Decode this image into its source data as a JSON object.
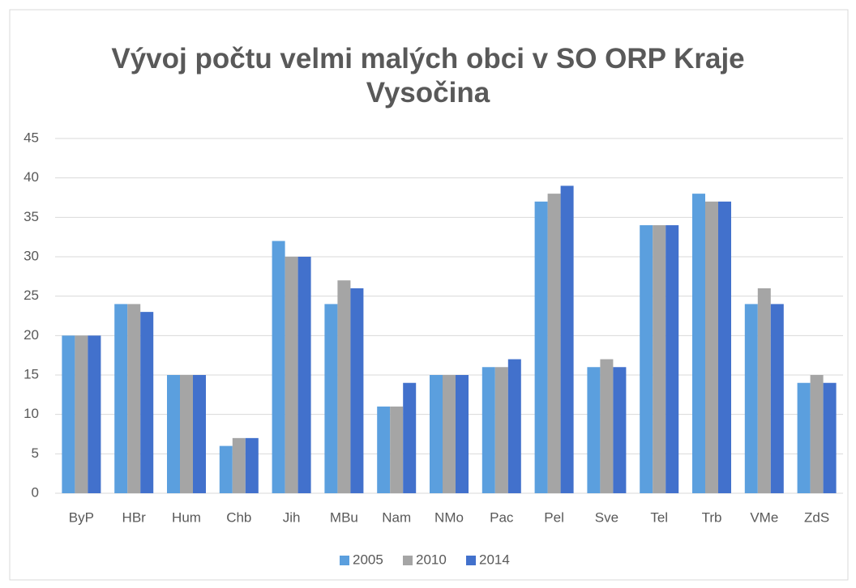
{
  "chart_data": {
    "type": "bar",
    "title": "Vývoj počtu velmi malých obci v SO ORP Kraje Vysočina",
    "categories": [
      "ByP",
      "HBr",
      "Hum",
      "Chb",
      "Jih",
      "MBu",
      "Nam",
      "NMo",
      "Pac",
      "Pel",
      "Sve",
      "Tel",
      "Trb",
      "VMe",
      "ZdS"
    ],
    "series": [
      {
        "name": "2005",
        "color": "#5b9fde",
        "values": [
          20,
          24,
          15,
          6,
          32,
          24,
          11,
          15,
          16,
          37,
          16,
          34,
          38,
          24,
          14
        ]
      },
      {
        "name": "2010",
        "color": "#a5a5a5",
        "values": [
          20,
          24,
          15,
          7,
          30,
          27,
          11,
          15,
          16,
          38,
          17,
          34,
          37,
          26,
          15
        ]
      },
      {
        "name": "2014",
        "color": "#4271cc",
        "values": [
          20,
          23,
          15,
          7,
          30,
          26,
          14,
          15,
          17,
          39,
          16,
          34,
          37,
          24,
          14
        ]
      }
    ],
    "ylim": [
      0,
      45
    ],
    "yticks": [
      0,
      5,
      10,
      15,
      20,
      25,
      30,
      35,
      40,
      45
    ],
    "grid": true,
    "legend": "bottom"
  }
}
